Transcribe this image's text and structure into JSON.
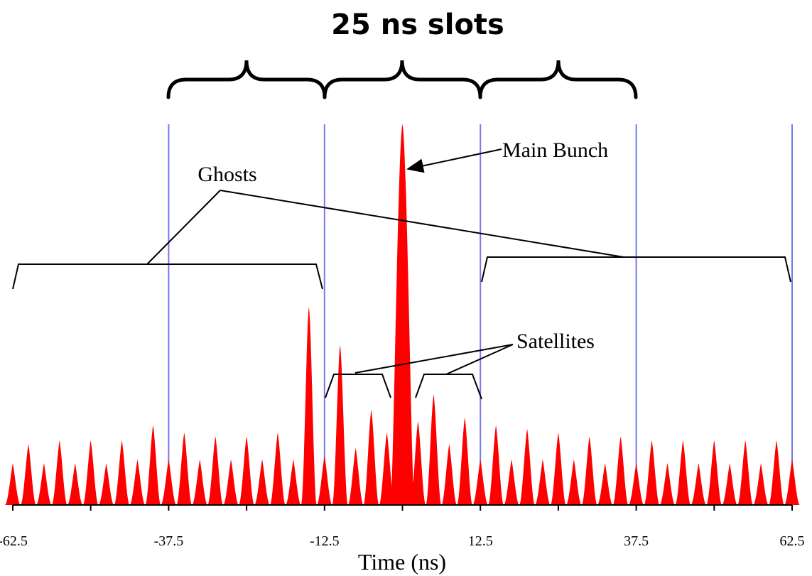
{
  "chart_data": {
    "type": "spikes",
    "title": "25 ns slots",
    "x_label": "Time (ns)",
    "color": "#ff0000",
    "slot_color": "#7777ee",
    "xlim": [
      -62.5,
      62.5
    ],
    "ylim": [
      0,
      100
    ],
    "xticks": [
      -62.5,
      -37.5,
      -12.5,
      12.5,
      37.5,
      62.5
    ],
    "minor_xticks": [
      -50,
      -25,
      0,
      25,
      50
    ],
    "slot_lines": [
      -37.5,
      -12.5,
      12.5,
      37.5,
      62.5
    ],
    "x": [
      -62.5,
      -60,
      -57.5,
      -55,
      -52.5,
      -50,
      -47.5,
      -45,
      -42.5,
      -40,
      -37.5,
      -35,
      -32.5,
      -30,
      -27.5,
      -25,
      -22.5,
      -20,
      -17.5,
      -15,
      -12.5,
      -10,
      -7.5,
      -5,
      -2.5,
      0,
      2.5,
      5,
      7.5,
      10,
      12.5,
      15,
      17.5,
      20,
      22.5,
      25,
      27.5,
      30,
      32.5,
      35,
      37.5,
      40,
      42.5,
      45,
      47.5,
      50,
      52.5,
      55,
      57.5,
      60,
      62.5
    ],
    "values": [
      11,
      16,
      11,
      17,
      11,
      17,
      11,
      17,
      12,
      21,
      12,
      19,
      12,
      18,
      12,
      18,
      12,
      19,
      12,
      52,
      13,
      42,
      15,
      25,
      19,
      100,
      22,
      29,
      16,
      23,
      12,
      21,
      12,
      20,
      12,
      19,
      12,
      18,
      11,
      18,
      11,
      17,
      11,
      17,
      11,
      17,
      11,
      17,
      11,
      17,
      12
    ],
    "annotations": {
      "ghosts": "Ghosts",
      "main": "Main Bunch",
      "satellites": "Satellites"
    }
  }
}
